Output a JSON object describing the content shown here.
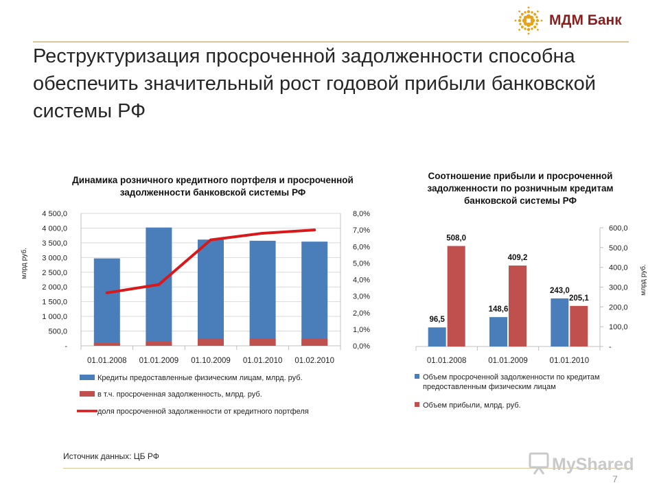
{
  "header": {
    "brand": "МДМ Банк",
    "title": "Реструктуризация просроченной задолженности способна обеспечить значительный рост годовой прибыли банковской системы РФ"
  },
  "chart_data": [
    {
      "type": "bar",
      "title": "Динамика розничного кредитного портфеля и просроченной задолженности банковской системы РФ",
      "ylabel": "млрд руб.",
      "categories": [
        "01.01.2008",
        "01.01.2009",
        "01.10.2009",
        "01.01.2010",
        "01.02.2010"
      ],
      "ylim": [
        0,
        4500
      ],
      "y_ticks": [
        "-",
        "500,0",
        "1 000,0",
        "1 500,0",
        "2 000,0",
        "2 500,0",
        "3 000,0",
        "3 500,0",
        "4 000,0",
        "4 500,0"
      ],
      "y2lim": [
        0,
        8
      ],
      "y2_ticks": [
        "0,0%",
        "1,0%",
        "2,0%",
        "3,0%",
        "4,0%",
        "5,0%",
        "6,0%",
        "7,0%",
        "8,0%"
      ],
      "series": [
        {
          "name": "Кредиты предоставленные физическим лицам, млрд. руб.",
          "type": "bar",
          "color": "#4a7ebb",
          "values": [
            2970,
            4020,
            3610,
            3570,
            3540
          ]
        },
        {
          "name": "в т.ч. просроченная задолженность, млрд. руб.",
          "type": "bar",
          "color": "#c0504d",
          "values": [
            100,
            140,
            230,
            240,
            240
          ]
        },
        {
          "name": "доля просроченной задолженности от кредитного портфеля",
          "type": "line",
          "axis": "y2",
          "color": "#d7191c",
          "values": [
            3.2,
            3.7,
            6.4,
            6.8,
            7.0
          ]
        }
      ],
      "grid": true,
      "legend_position": "bottom"
    },
    {
      "type": "bar",
      "title": "Соотношение прибыли и просроченной задолженности по розничным кредитам банковской системы РФ",
      "ylabel": "млрд руб.",
      "categories": [
        "01.01.2008",
        "01.01.2009",
        "01.01.2010"
      ],
      "ylim": [
        0,
        600
      ],
      "y_ticks": [
        "-",
        "100,0",
        "200,0",
        "300,0",
        "400,0",
        "500,0",
        "600,0"
      ],
      "series": [
        {
          "name": "Объем просроченной задолженности по кредитам предоставленным физическим лицам",
          "color": "#4a7ebb",
          "values": [
            96.5,
            148.6,
            243.0
          ],
          "labels": [
            "96,5",
            "148,6",
            "243,0"
          ]
        },
        {
          "name": "Объем прибыли, млрд. руб.",
          "color": "#c0504d",
          "values": [
            508.0,
            409.2,
            205.1
          ],
          "labels": [
            "508,0",
            "409,2",
            "205,1"
          ]
        }
      ],
      "grid": false,
      "legend_position": "bottom"
    }
  ],
  "footer": {
    "source": "Источник данных: ЦБ РФ",
    "watermark": "MyShared",
    "page_number": "7"
  }
}
